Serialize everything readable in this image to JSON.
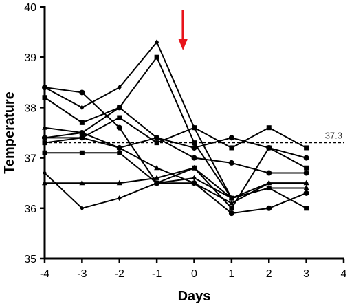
{
  "chart_data": {
    "type": "line",
    "title": "",
    "xlabel": "Days",
    "ylabel": "Temperature",
    "xlim": [
      -4,
      4
    ],
    "ylim": [
      35,
      40
    ],
    "x_ticks": [
      "-4",
      "-3",
      "-2",
      "-1",
      "0",
      "1",
      "2",
      "3",
      "4"
    ],
    "y_ticks": [
      "35",
      "36",
      "37",
      "38",
      "39",
      "40"
    ],
    "reference_line": {
      "y": 37.3,
      "label": "37.3",
      "style": "dashed"
    },
    "event_marker": {
      "x": -0.3,
      "description": "red arrow pointing down",
      "color": "#e8141a"
    },
    "line_color": "#000000",
    "x": [
      -4,
      -3,
      -2,
      -1,
      0,
      1,
      2,
      3
    ],
    "series": [
      {
        "marker": "circle",
        "values": [
          38.4,
          38.3,
          37.6,
          36.5,
          36.5,
          35.9,
          36.0,
          36.3
        ]
      },
      {
        "marker": "diamond",
        "values": [
          38.4,
          38.0,
          38.4,
          39.3,
          37.6,
          36.2,
          36.4,
          36.4
        ]
      },
      {
        "marker": "square",
        "values": [
          38.2,
          37.7,
          38.0,
          39.0,
          37.3,
          36.2,
          36.4,
          36.0
        ]
      },
      {
        "marker": "circle",
        "values": [
          37.4,
          37.5,
          38.0,
          37.4,
          37.2,
          37.4,
          37.2,
          37.0
        ]
      },
      {
        "marker": "square",
        "values": [
          37.3,
          37.4,
          37.8,
          37.3,
          37.6,
          37.2,
          37.6,
          37.2
        ]
      },
      {
        "marker": "circle",
        "values": [
          37.4,
          37.4,
          37.2,
          37.4,
          37.0,
          36.9,
          36.7,
          36.7
        ]
      },
      {
        "marker": "triangle",
        "values": [
          37.6,
          37.5,
          37.2,
          36.8,
          36.5,
          36.1,
          36.5,
          36.5
        ]
      },
      {
        "marker": "square",
        "values": [
          37.1,
          37.1,
          37.1,
          36.5,
          36.8,
          36.0,
          37.2,
          36.8
        ]
      },
      {
        "marker": "diamond",
        "values": [
          36.7,
          36.0,
          36.2,
          36.5,
          36.6,
          36.2,
          36.5,
          36.5
        ]
      },
      {
        "marker": "triangle",
        "values": [
          36.5,
          36.5,
          36.5,
          36.6,
          36.8,
          36.2,
          36.4,
          36.4
        ]
      }
    ]
  }
}
